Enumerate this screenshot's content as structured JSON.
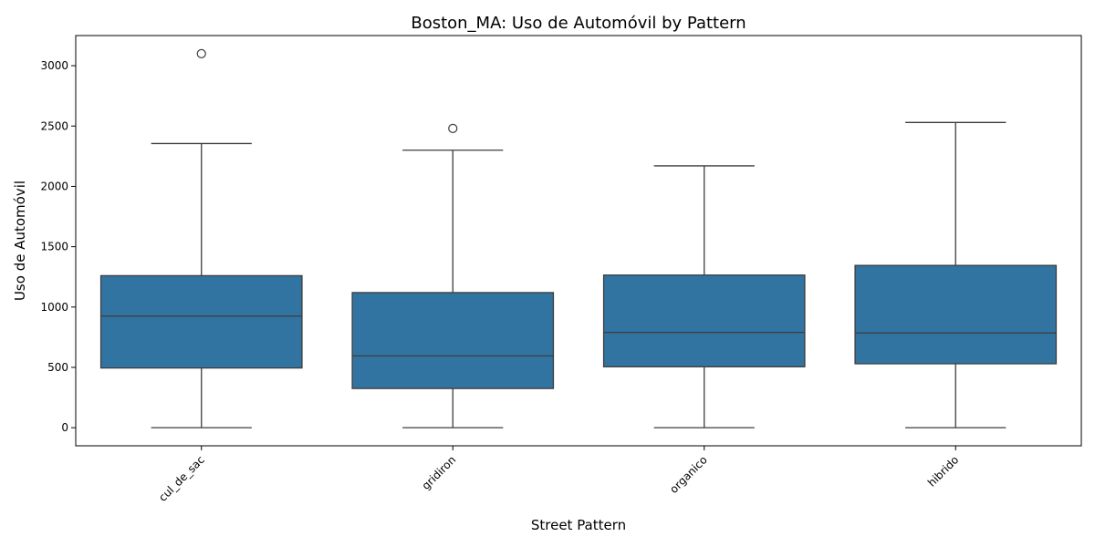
{
  "chart_data": {
    "type": "box",
    "title": "Boston_MA: Uso de Automóvil by Pattern",
    "xlabel": "Street Pattern",
    "ylabel": "Uso de Automóvil",
    "ylim": [
      -150,
      3250
    ],
    "yticks": [
      0,
      500,
      1000,
      1500,
      2000,
      2500,
      3000
    ],
    "grid": false,
    "legend": "none",
    "categories": [
      "cul_de_sac",
      "gridiron",
      "organico",
      "hibrido"
    ],
    "boxes": [
      {
        "category": "cul_de_sac",
        "whisker_low": 0,
        "q1": 495,
        "median": 925,
        "q3": 1260,
        "whisker_high": 2355,
        "outliers": [
          3100
        ]
      },
      {
        "category": "gridiron",
        "whisker_low": 0,
        "q1": 325,
        "median": 595,
        "q3": 1120,
        "whisker_high": 2300,
        "outliers": [
          2480
        ]
      },
      {
        "category": "organico",
        "whisker_low": 0,
        "q1": 505,
        "median": 790,
        "q3": 1265,
        "whisker_high": 2170,
        "outliers": []
      },
      {
        "category": "hibrido",
        "whisker_low": 0,
        "q1": 530,
        "median": 785,
        "q3": 1345,
        "whisker_high": 2530,
        "outliers": []
      }
    ],
    "colors": {
      "box_fill": "#3274a1",
      "line": "#3d3d3d",
      "axis": "#000000"
    }
  }
}
